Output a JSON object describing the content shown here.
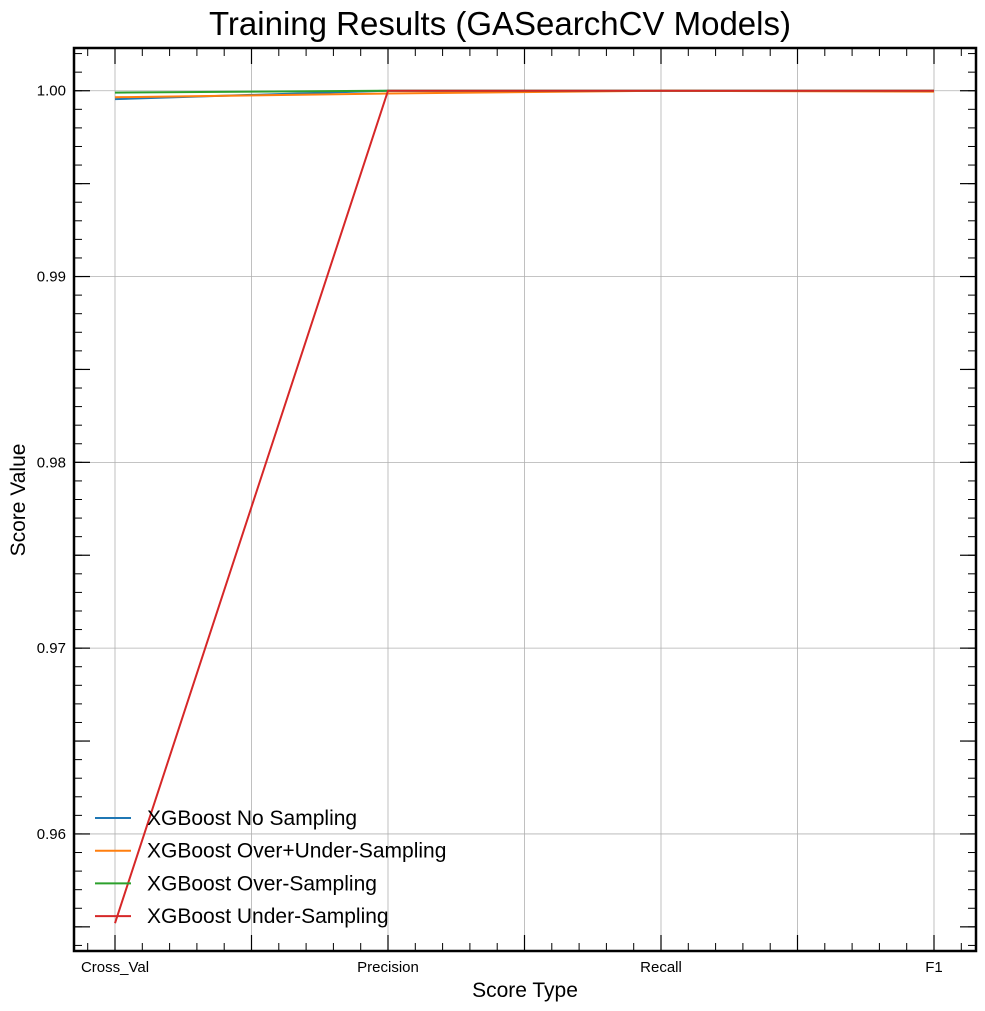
{
  "chart_data": {
    "type": "line",
    "title": "Training Results (GASearchCV Models)",
    "xlabel": "Score Type",
    "ylabel": "Score Value",
    "categories": [
      "Cross_Val",
      "Precision",
      "Recall",
      "F1"
    ],
    "ylim": [
      0.9537,
      1.0023
    ],
    "yticks": [
      0.96,
      0.97,
      0.98,
      0.99,
      1.0
    ],
    "ytick_labels": [
      "0.96",
      "0.97",
      "0.98",
      "0.99",
      "1.00"
    ],
    "grid": true,
    "legend_position": "lower-left",
    "series": [
      {
        "name": "XGBoost No Sampling",
        "color": "#1f77b4",
        "values": [
          0.99955,
          1.0,
          1.0,
          1.0
        ]
      },
      {
        "name": "XGBoost Over+Under-Sampling",
        "color": "#ff7f0e",
        "values": [
          0.99965,
          0.99985,
          1.0,
          0.99995
        ]
      },
      {
        "name": "XGBoost Over-Sampling",
        "color": "#2ca02c",
        "values": [
          0.9999,
          1.0,
          1.0,
          1.0
        ]
      },
      {
        "name": "XGBoost Under-Sampling",
        "color": "#d62728",
        "values": [
          0.9552,
          1.0,
          1.0,
          1.0
        ]
      }
    ]
  }
}
